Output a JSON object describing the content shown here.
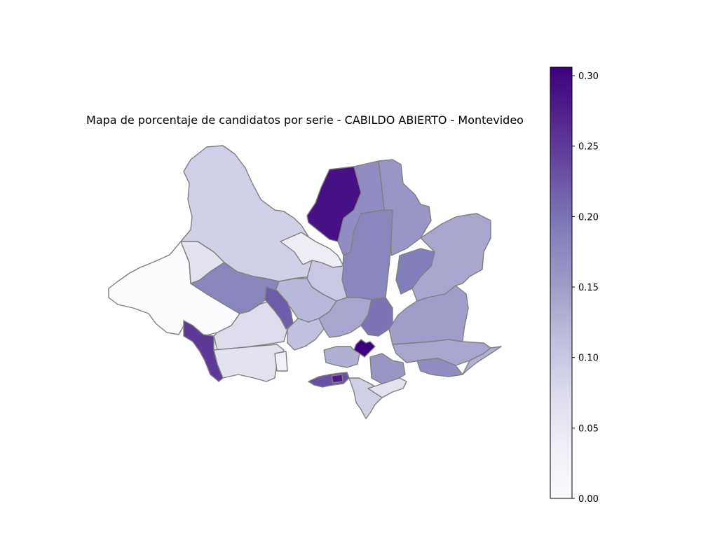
{
  "title": "Mapa de porcentaje de candidatos por serie - CABILDO ABIERTO - Montevideo",
  "colormap": {
    "name": "Purples",
    "stops": [
      "#fcfbfd",
      "#efedf5",
      "#dadaeb",
      "#bcbddc",
      "#9e9ac8",
      "#807dba",
      "#6a51a3",
      "#54278f",
      "#3f007d"
    ]
  },
  "chart_data": {
    "type": "choropleth",
    "title": "Mapa de porcentaje de candidatos por serie - CABILDO ABIERTO - Montevideo",
    "colorbar": {
      "min": 0.0,
      "max": 0.306,
      "ticks": [
        0.0,
        0.05,
        0.1,
        0.15,
        0.2,
        0.25,
        0.3
      ],
      "tick_labels": [
        "0.00",
        "0.05",
        "0.10",
        "0.15",
        "0.20",
        "0.25",
        "0.30"
      ]
    },
    "regions": [
      {
        "id": "north-west-large",
        "value": 0.09
      },
      {
        "id": "west-large",
        "value": 0.0
      },
      {
        "id": "west-inner-strip",
        "value": 0.06
      },
      {
        "id": "west-center",
        "value": 0.18
      },
      {
        "id": "southwest-coast",
        "value": 0.25
      },
      {
        "id": "south-west-a",
        "value": 0.07
      },
      {
        "id": "south-west-b",
        "value": 0.06
      },
      {
        "id": "south-west-c",
        "value": 0.03
      },
      {
        "id": "north-dark",
        "value": 0.29
      },
      {
        "id": "north-center-a",
        "value": 0.17
      },
      {
        "id": "north-center-b",
        "value": 0.18
      },
      {
        "id": "north-east-a",
        "value": 0.16
      },
      {
        "id": "east-a",
        "value": 0.14
      },
      {
        "id": "east-b",
        "value": 0.19
      },
      {
        "id": "east-c",
        "value": 0.15
      },
      {
        "id": "center-notch",
        "value": 0.04
      },
      {
        "id": "center-a",
        "value": 0.1
      },
      {
        "id": "center-b",
        "value": 0.12
      },
      {
        "id": "center-c",
        "value": 0.22
      },
      {
        "id": "center-d",
        "value": 0.11
      },
      {
        "id": "center-e",
        "value": 0.14
      },
      {
        "id": "center-f",
        "value": 0.2
      },
      {
        "id": "hotspot",
        "value": 0.306
      },
      {
        "id": "south-coast-dark",
        "value": 0.23
      },
      {
        "id": "south-coast-tip",
        "value": 0.28
      },
      {
        "id": "south-a",
        "value": 0.13
      },
      {
        "id": "south-b",
        "value": 0.09
      },
      {
        "id": "south-c",
        "value": 0.16
      },
      {
        "id": "south-east-a",
        "value": 0.14
      },
      {
        "id": "south-east-b",
        "value": 0.17
      },
      {
        "id": "south-east-c",
        "value": 0.13
      },
      {
        "id": "south-d",
        "value": 0.06
      }
    ]
  }
}
